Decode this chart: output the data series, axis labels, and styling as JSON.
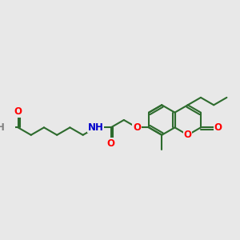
{
  "bg_color": "#e8e8e8",
  "bond_color": "#2d6b2d",
  "atom_colors": {
    "O": "#ff0000",
    "N": "#0000cc",
    "H": "#808080",
    "C": "#2d6b2d"
  },
  "bond_width": 1.5,
  "font_size": 8.5,
  "bl": 18
}
